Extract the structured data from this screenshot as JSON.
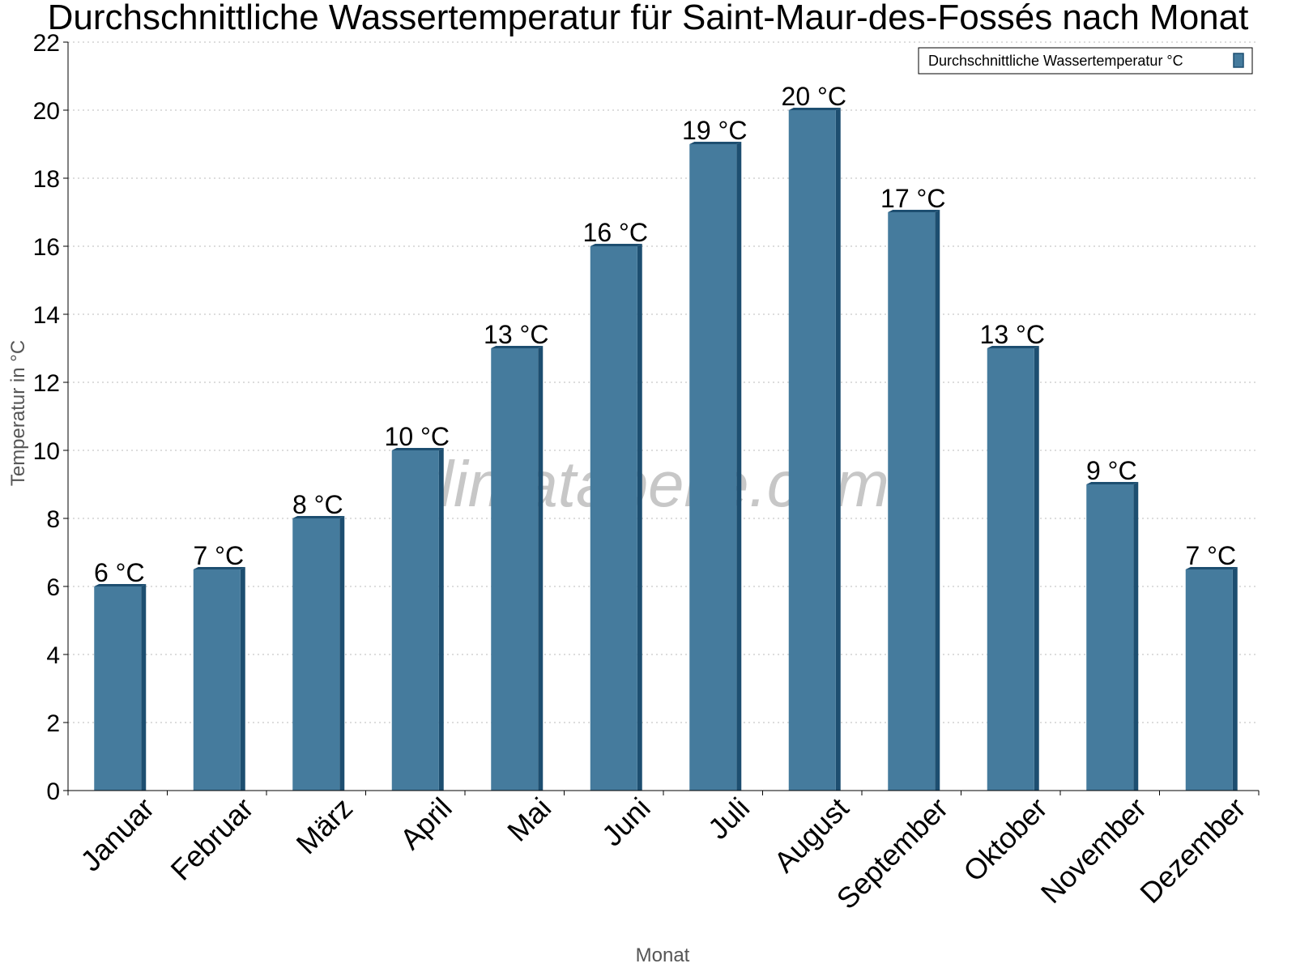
{
  "chart_data": {
    "type": "bar",
    "title": "Durchschnittliche Wassertemperatur für Saint-Maur-des-Fossés nach Monat",
    "xlabel": "Monat",
    "ylabel": "Temperatur in °C",
    "categories": [
      "Januar",
      "Februar",
      "März",
      "April",
      "Mai",
      "Juni",
      "Juli",
      "August",
      "September",
      "Oktober",
      "November",
      "Dezember"
    ],
    "series": [
      {
        "name": "Durchschnittliche Wassertemperatur °C",
        "values": [
          6,
          6.5,
          8,
          10,
          13,
          16,
          19,
          20,
          17,
          13,
          9,
          6.5
        ],
        "data_labels": [
          "6 °C",
          "7 °C",
          "8 °C",
          "10 °C",
          "13 °C",
          "16 °C",
          "19 °C",
          "20 °C",
          "17 °C",
          "13 °C",
          "9 °C",
          "7 °C"
        ],
        "color": "#457b9d",
        "edge_color": "#1d4e70"
      }
    ],
    "ylim": [
      0,
      22
    ],
    "yticks": [
      0,
      2,
      4,
      6,
      8,
      10,
      12,
      14,
      16,
      18,
      20,
      22
    ],
    "grid": true,
    "legend_position": "top-right",
    "watermark": "klimatabelle.com"
  }
}
